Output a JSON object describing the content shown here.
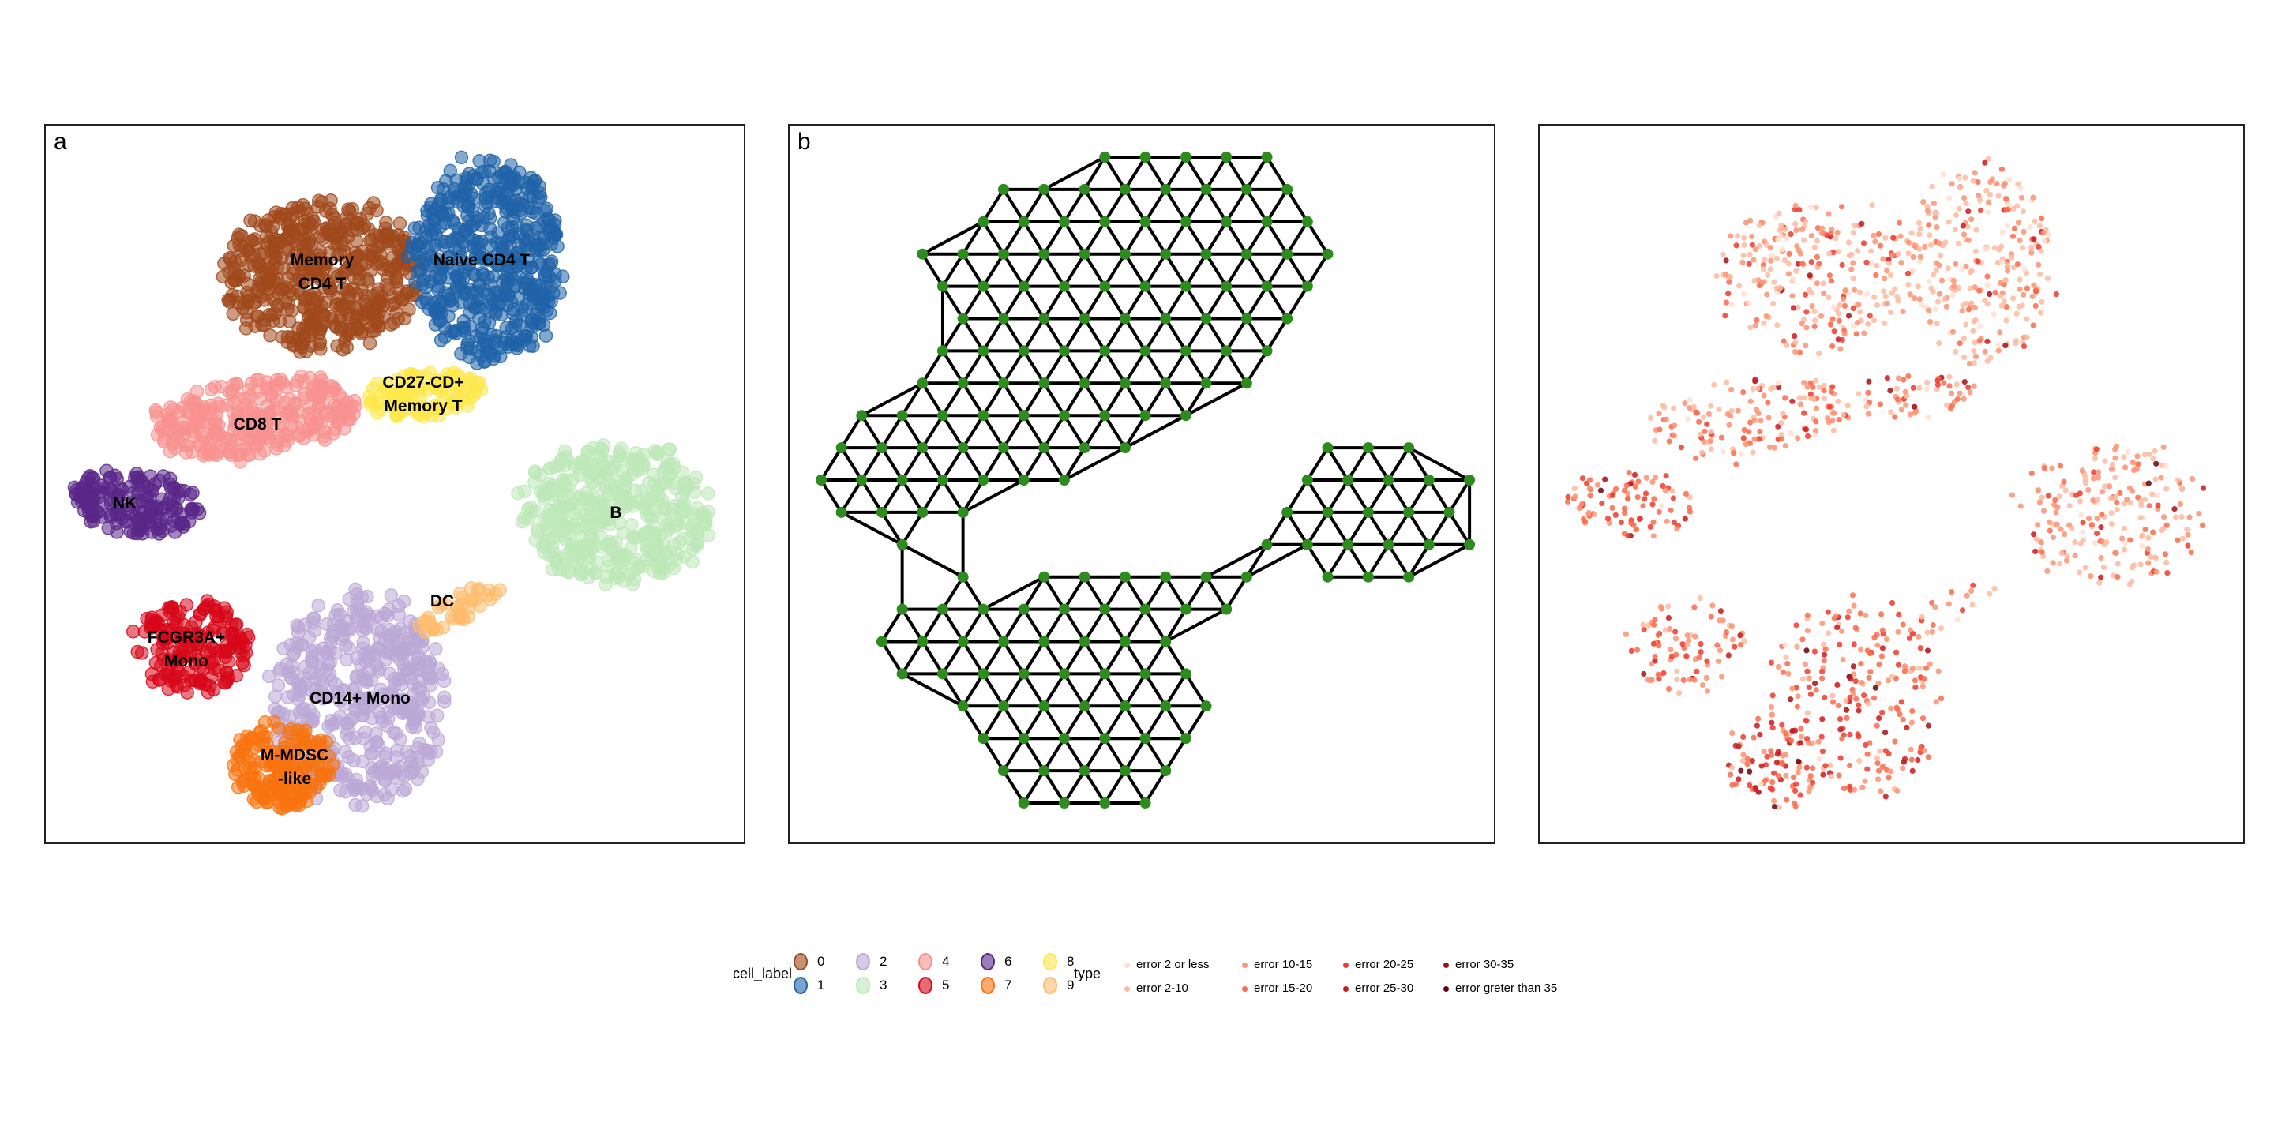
{
  "chart_data": [
    {
      "type": "scatter",
      "panel_tag": "a",
      "legend_title": "cell_label",
      "legend_placement": "bottom",
      "grid": false,
      "clusters": [
        {
          "cell_label": "0",
          "name": "Memory\nCD4 T",
          "color": "#a0491c"
        },
        {
          "cell_label": "1",
          "name": "Naive CD4 T",
          "color": "#1f63a8"
        },
        {
          "cell_label": "2",
          "name": "CD14+ Mono",
          "color": "#bba7d6"
        },
        {
          "cell_label": "3",
          "name": "B",
          "color": "#bde8b8"
        },
        {
          "cell_label": "4",
          "name": "CD8 T",
          "color": "#f7918f"
        },
        {
          "cell_label": "5",
          "name": "FCGR3A+\nMono",
          "color": "#d7081a"
        },
        {
          "cell_label": "6",
          "name": "NK",
          "color": "#592788"
        },
        {
          "cell_label": "7",
          "name": "M-MDSC\n-like",
          "color": "#f8730f"
        },
        {
          "cell_label": "8",
          "name": "CD27-CD+\nMemory T",
          "color": "#fde84a"
        },
        {
          "cell_label": "9",
          "name": "DC",
          "color": "#fdbc6e"
        }
      ]
    },
    {
      "type": "diagram",
      "panel_tag": "b",
      "description_kind": "triangular lattice graph",
      "node_color": "#2e8b1e",
      "edge_color": "#000000"
    },
    {
      "type": "scatter",
      "panel_tag": "",
      "legend_title": "type",
      "legend_placement": "bottom",
      "grid": false,
      "categories": [
        {
          "label": "error 2 or less",
          "color": "#fee0d2"
        },
        {
          "label": "error 2-10",
          "color": "#fcbba1"
        },
        {
          "label": "error 10-15",
          "color": "#fc9272"
        },
        {
          "label": "error 15-20",
          "color": "#fb6a4a"
        },
        {
          "label": "error 20-25",
          "color": "#ef3b2c"
        },
        {
          "label": "error 25-30",
          "color": "#cb181d"
        },
        {
          "label": "error 30-35",
          "color": "#a50f15"
        },
        {
          "label": "error greter than 35",
          "color": "#67000d"
        }
      ]
    }
  ]
}
